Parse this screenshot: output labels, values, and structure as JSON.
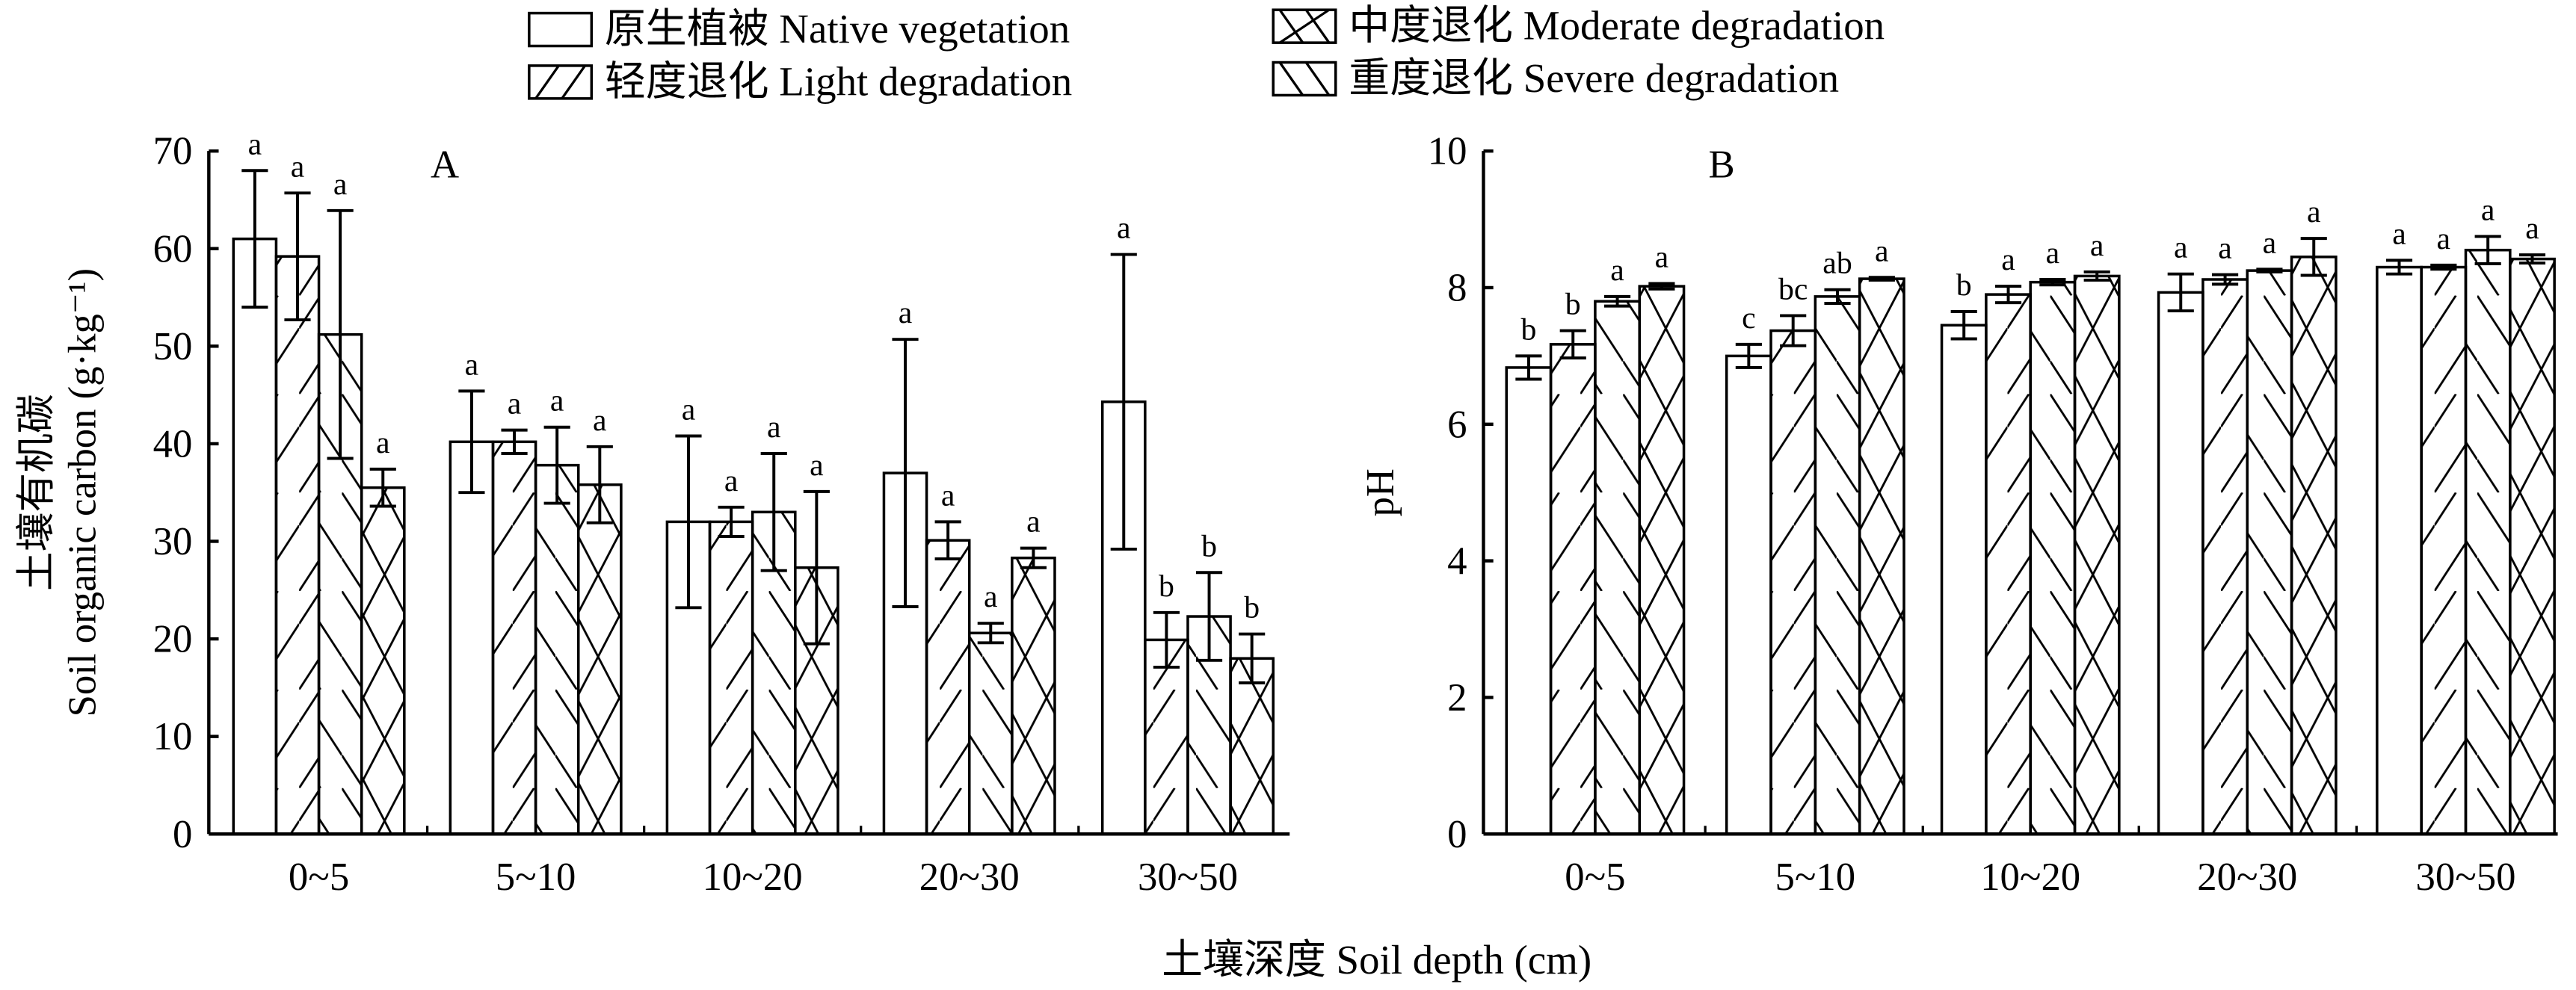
{
  "legend": [
    {
      "label": "原生植被 Native vegetation",
      "pattern": "none"
    },
    {
      "label": "轻度退化 Light degradation",
      "pattern": "light"
    },
    {
      "label": "中度退化 Moderate degradation",
      "pattern": "moderate"
    },
    {
      "label": "重度退化 Severe degradation",
      "pattern": "severe"
    }
  ],
  "xlabel": "土壤深度 Soil depth (cm)",
  "chart_data": [
    {
      "type": "bar",
      "panel": "A",
      "ylabel_cn": "土壤有机碳",
      "ylabel_en": "Soil organic carbon (g·kg⁻¹)",
      "ylim": [
        0,
        70
      ],
      "yticks": [
        0,
        10,
        20,
        30,
        40,
        50,
        60,
        70
      ],
      "categories": [
        "0~5",
        "5~10",
        "10~20",
        "20~30",
        "30~50"
      ],
      "series": [
        {
          "name": "Native vegetation",
          "values": [
            61.0,
            40.2,
            32.0,
            37.0,
            44.3
          ],
          "errors": [
            7.0,
            5.2,
            8.8,
            13.7,
            15.1
          ],
          "letters": [
            "a",
            "a",
            "a",
            "a",
            "a"
          ]
        },
        {
          "name": "Light degradation",
          "values": [
            59.2,
            40.2,
            32.0,
            30.1,
            19.9
          ],
          "errors": [
            6.5,
            1.2,
            1.5,
            1.9,
            2.8
          ],
          "letters": [
            "a",
            "a",
            "a",
            "a",
            "b"
          ]
        },
        {
          "name": "Moderate degradation",
          "values": [
            51.2,
            37.8,
            33.0,
            20.6,
            22.3
          ],
          "errors": [
            12.7,
            3.9,
            6.0,
            1.0,
            4.5
          ],
          "letters": [
            "a",
            "a",
            "a",
            "a",
            "b"
          ]
        },
        {
          "name": "Severe degradation",
          "values": [
            35.5,
            35.8,
            27.3,
            28.3,
            18.0
          ],
          "errors": [
            1.9,
            3.9,
            7.8,
            1.0,
            2.5
          ],
          "letters": [
            "a",
            "a",
            "a",
            "a",
            "b"
          ]
        }
      ]
    },
    {
      "type": "bar",
      "panel": "B",
      "ylabel_en": "pH",
      "ylim": [
        0,
        10
      ],
      "yticks": [
        0,
        2,
        4,
        6,
        8,
        10
      ],
      "categories": [
        "0~5",
        "5~10",
        "10~20",
        "20~30",
        "30~50"
      ],
      "series": [
        {
          "name": "Native vegetation",
          "values": [
            6.83,
            7.0,
            7.45,
            7.93,
            8.3
          ],
          "errors": [
            0.17,
            0.17,
            0.2,
            0.27,
            0.1
          ],
          "letters": [
            "b",
            "c",
            "b",
            "a",
            "a"
          ]
        },
        {
          "name": "Light degradation",
          "values": [
            7.17,
            7.37,
            7.9,
            8.12,
            8.3
          ],
          "errors": [
            0.2,
            0.22,
            0.12,
            0.07,
            0.03
          ],
          "letters": [
            "b",
            "bc",
            "a",
            "a",
            "a"
          ]
        },
        {
          "name": "Moderate degradation",
          "values": [
            7.8,
            7.87,
            8.08,
            8.25,
            8.55
          ],
          "errors": [
            0.07,
            0.1,
            0.04,
            0.02,
            0.2
          ],
          "letters": [
            "a",
            "ab",
            "a",
            "a",
            "a"
          ]
        },
        {
          "name": "Severe degradation",
          "values": [
            8.02,
            8.13,
            8.17,
            8.45,
            8.42
          ],
          "errors": [
            0.04,
            0.02,
            0.06,
            0.27,
            0.06
          ],
          "letters": [
            "a",
            "a",
            "a",
            "a",
            "a"
          ]
        }
      ]
    }
  ]
}
